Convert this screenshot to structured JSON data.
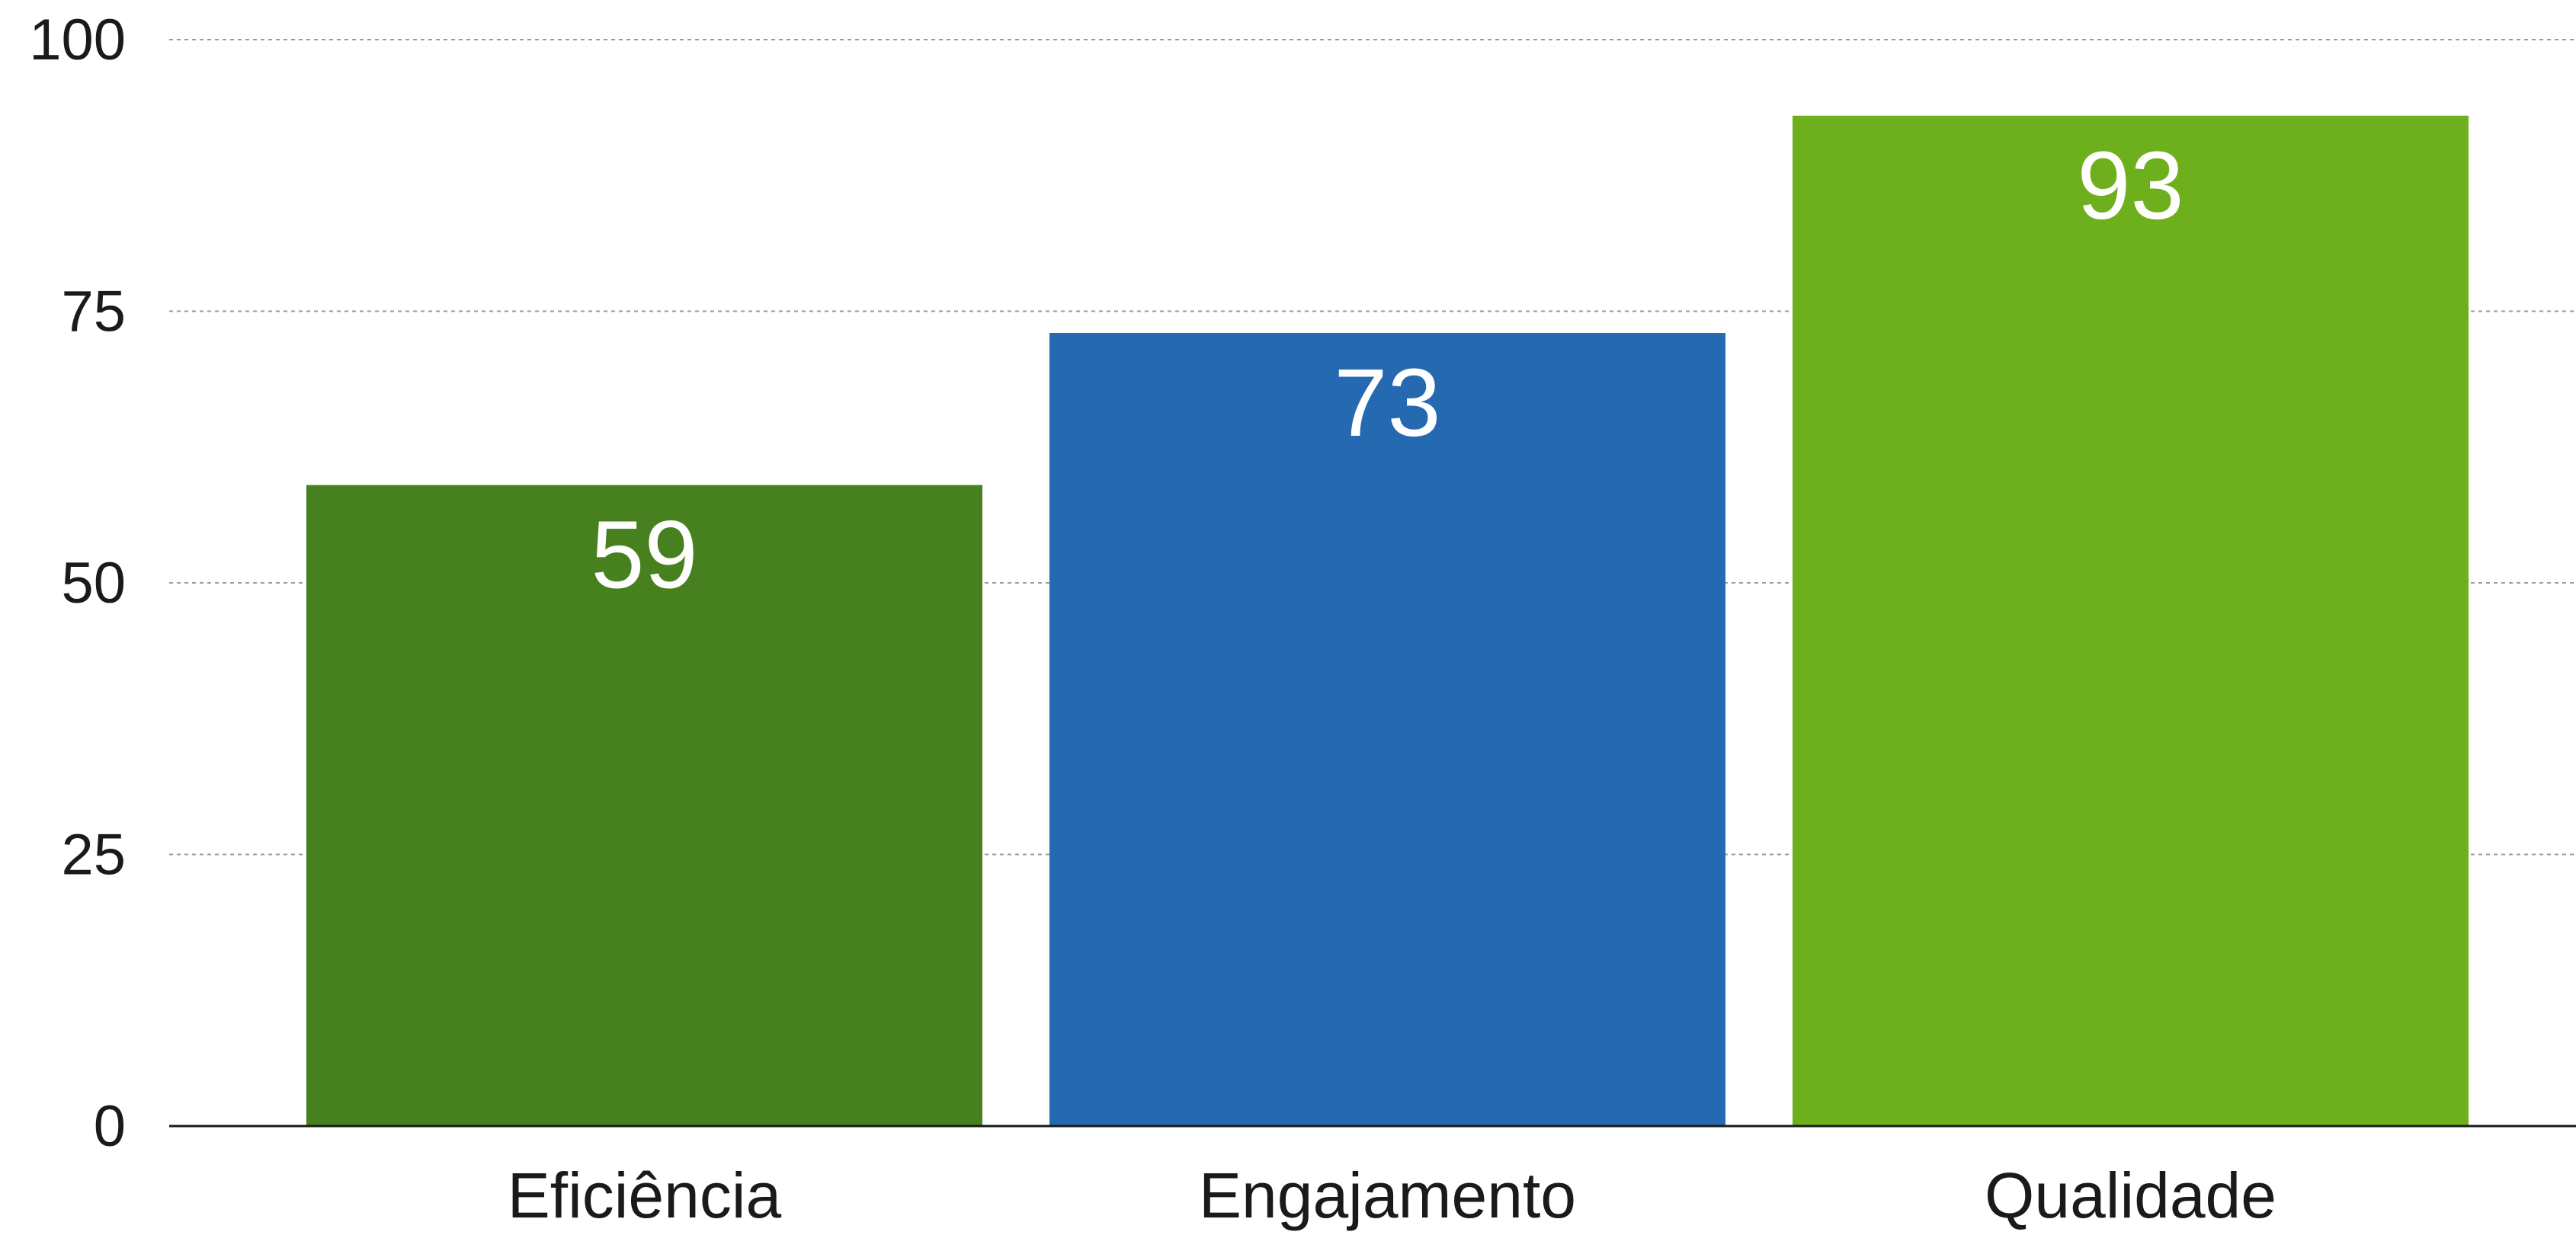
{
  "chart_data": {
    "type": "bar",
    "categories": [
      "Eficiência",
      "Engajamento",
      "Qualidade"
    ],
    "values": [
      59,
      73,
      93
    ],
    "colors": [
      "#47801f",
      "#2569b1",
      "#6eaf1e"
    ],
    "title": "",
    "xlabel": "",
    "ylabel": "",
    "ylim": [
      0,
      100
    ],
    "yticks": [
      0,
      25,
      50,
      75,
      100
    ],
    "ytick_labels": [
      "0",
      "25",
      "50",
      "75",
      "100"
    ],
    "grid": true,
    "data_labels": [
      "59",
      "73",
      "93"
    ]
  }
}
